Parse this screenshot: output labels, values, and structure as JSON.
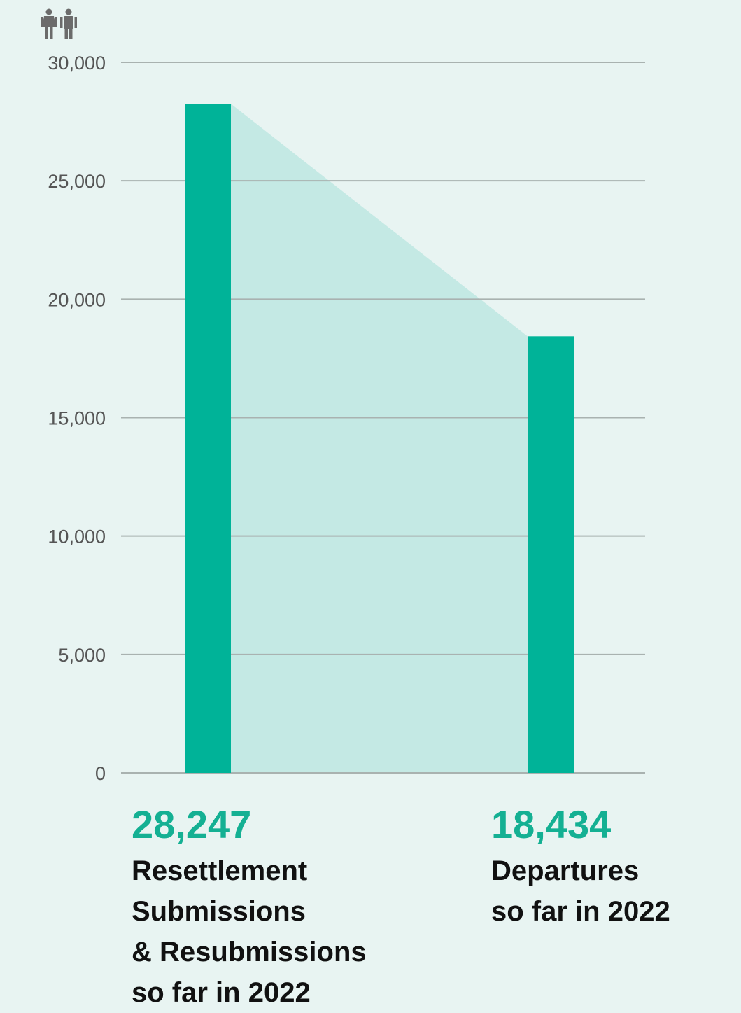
{
  "colors": {
    "bar": "#00b398",
    "area": "#c4e9e4",
    "grid": "#a9b2b0",
    "value_text": "#14b093",
    "label_text": "#111111",
    "tick_text": "#555555",
    "icon": "#6b6b6b"
  },
  "icon": "people-icon",
  "chart_data": {
    "type": "bar",
    "categories": [
      "Resettlement Submissions & Resubmissions so far in 2022",
      "Departures so far in 2022"
    ],
    "values": [
      28247,
      18434
    ],
    "ylim": [
      0,
      30000
    ],
    "yticks": [
      0,
      5000,
      10000,
      15000,
      20000,
      25000,
      30000
    ],
    "ytick_labels": [
      "0",
      "5,000",
      "10,000",
      "15,000",
      "20,000",
      "25,000",
      "30,000"
    ],
    "grid": true,
    "connecting_area": true
  },
  "annotations": [
    {
      "value": "28,247",
      "label_lines": [
        "Resettlement",
        "Submissions",
        "& Resubmissions",
        "so far in 2022"
      ]
    },
    {
      "value": "18,434",
      "label_lines": [
        "Departures",
        "so far in 2022"
      ]
    }
  ]
}
